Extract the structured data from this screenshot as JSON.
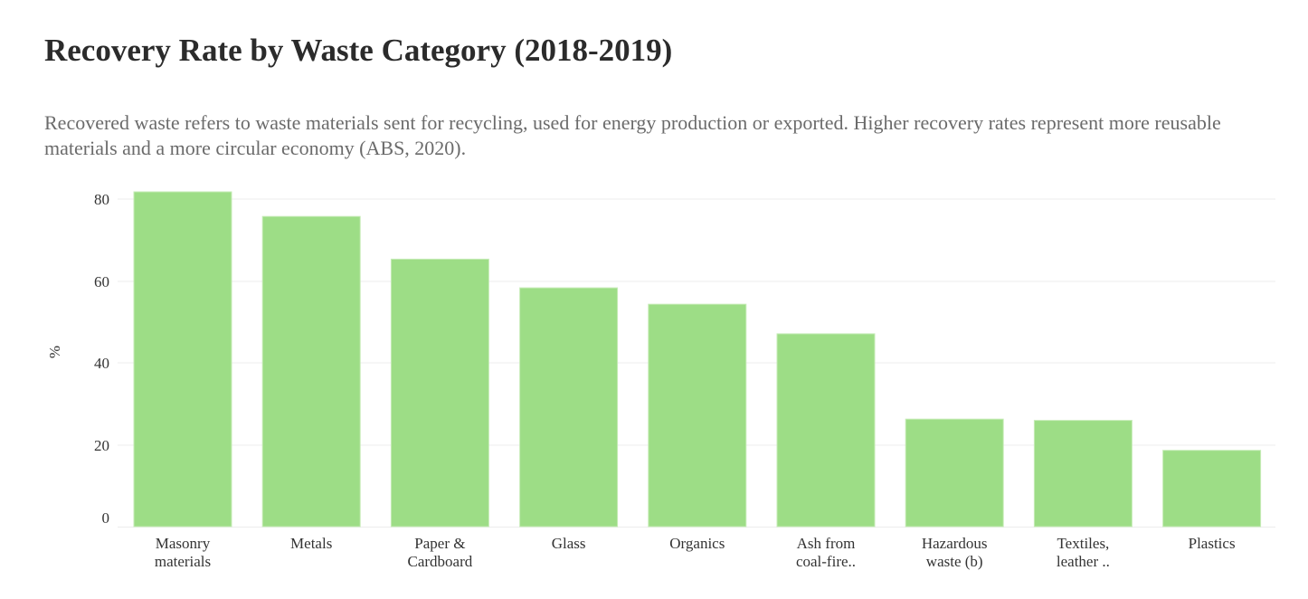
{
  "header": {
    "title": "Recovery Rate by Waste Category (2018-2019)",
    "subtitle": "Recovered waste refers to waste materials sent for recycling, used for energy production or exported. Higher recovery rates represent more reusable materials and a more circular economy (ABS, 2020)."
  },
  "chart_data": {
    "type": "bar",
    "title": "Recovery Rate by Waste Category (2018-2019)",
    "xlabel": "",
    "ylabel": "%",
    "ylim": [
      0,
      80
    ],
    "yticks": [
      0,
      20,
      40,
      60,
      80
    ],
    "grid": true,
    "bar_color": "#9ddd86",
    "categories": [
      [
        "Masonry",
        "materials"
      ],
      [
        "Metals"
      ],
      [
        "Paper &",
        "Cardboard"
      ],
      [
        "Glass"
      ],
      [
        "Organics"
      ],
      [
        "Ash from",
        "coal-fire.."
      ],
      [
        "Hazardous",
        "waste (b)"
      ],
      [
        "Textiles,",
        "leather .."
      ],
      [
        "Plastics"
      ]
    ],
    "values": [
      81.6,
      75.6,
      65.2,
      58.2,
      54.2,
      47.0,
      26.2,
      25.9,
      18.6
    ]
  }
}
